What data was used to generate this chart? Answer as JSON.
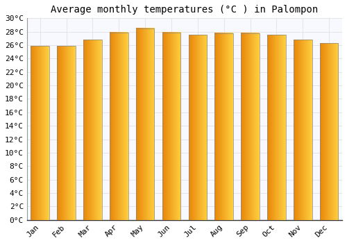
{
  "title": "Average monthly temperatures (°C ) in Palompon",
  "months": [
    "Jan",
    "Feb",
    "Mar",
    "Apr",
    "May",
    "Jun",
    "Jul",
    "Aug",
    "Sep",
    "Oct",
    "Nov",
    "Dec"
  ],
  "values": [
    25.9,
    25.9,
    26.8,
    27.9,
    28.5,
    27.9,
    27.5,
    27.8,
    27.8,
    27.5,
    26.8,
    26.3
  ],
  "ylim": [
    0,
    30
  ],
  "yticks": [
    0,
    2,
    4,
    6,
    8,
    10,
    12,
    14,
    16,
    18,
    20,
    22,
    24,
    26,
    28,
    30
  ],
  "bar_color_left": "#E8860A",
  "bar_color_right": "#FFD040",
  "bar_edge_color": "#888888",
  "background_color": "#FFFFFF",
  "plot_bg_color": "#F8F8FF",
  "grid_color": "#DDDDDD",
  "title_fontsize": 10,
  "tick_fontsize": 8,
  "bar_width": 0.7,
  "gradient_steps": 100
}
